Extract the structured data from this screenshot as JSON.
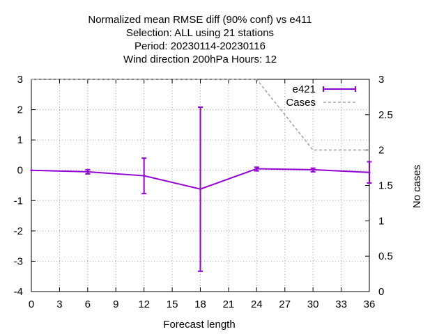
{
  "chart_data": {
    "type": "line",
    "title_lines": [
      "Normalized mean RMSE diff (90% conf) vs e411",
      "Selection: ALL using    21 stations",
      "Period: 20230114-20230116",
      "Wind direction 200hPa   Hours:  12"
    ],
    "xlabel": "Forecast length",
    "ylabel": "",
    "y2label": "No cases",
    "xlim": [
      0,
      36
    ],
    "ylim": [
      -4,
      3
    ],
    "y2lim": [
      0,
      3
    ],
    "xticks": [
      "0",
      "3",
      "6",
      "9",
      "12",
      "15",
      "18",
      "21",
      "24",
      "27",
      "30",
      "33",
      "36"
    ],
    "yticks": [
      "-4",
      "-3",
      "-2",
      "-1",
      "0",
      "1",
      "2",
      "3"
    ],
    "y2ticks": [
      "0",
      "0.5",
      "1",
      "1.5",
      "2",
      "2.5",
      "3"
    ],
    "grid": true,
    "legend_position": "top-right",
    "series": [
      {
        "name": "e421",
        "color": "#9400d3",
        "style": "line-errorbars",
        "x": [
          0,
          6,
          12,
          18,
          24,
          30,
          36
        ],
        "y": [
          0.0,
          -0.05,
          -0.18,
          -0.62,
          0.05,
          0.02,
          -0.07
        ],
        "err_low": [
          0.0,
          -0.12,
          -0.77,
          -3.33,
          -0.02,
          -0.05,
          -0.42
        ],
        "err_high": [
          0.0,
          0.02,
          0.4,
          2.08,
          0.1,
          0.07,
          0.28
        ]
      },
      {
        "name": "Cases",
        "color": "#a0a0a0",
        "style": "dashed",
        "axis": "y2",
        "x": [
          0,
          6,
          12,
          18,
          24,
          30,
          36
        ],
        "y": [
          3,
          3,
          3,
          3,
          3,
          2,
          2
        ]
      }
    ]
  }
}
